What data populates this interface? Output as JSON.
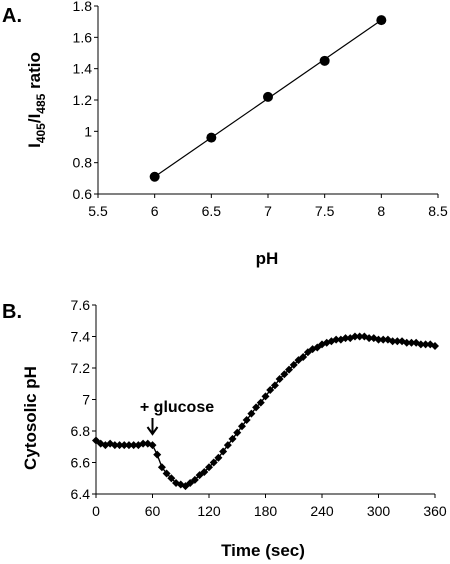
{
  "chart_data": [
    {
      "type": "scatter",
      "panel_label": "A.",
      "xlabel": "pH",
      "ylabel_main": "I",
      "ylabel_sub1": "405",
      "ylabel_mid": "/I",
      "ylabel_sub2": "485",
      "ylabel_end": " ratio",
      "xlim": [
        5.5,
        8.5
      ],
      "ylim": [
        0.6,
        1.8
      ],
      "xticks": [
        "5.5",
        "6",
        "6.5",
        "7",
        "7.5",
        "8",
        "8.5"
      ],
      "yticks": [
        "0.6",
        "0.8",
        "1",
        "1.2",
        "1.4",
        "1.6",
        "1.8"
      ],
      "grid": false,
      "trendline": "linear",
      "series": [
        {
          "x": [
            6,
            6.5,
            7,
            7.5,
            8
          ],
          "y": [
            0.71,
            0.96,
            1.22,
            1.45,
            1.71
          ]
        }
      ]
    },
    {
      "type": "line",
      "panel_label": "B.",
      "xlabel": "Time (sec)",
      "ylabel": "Cytosolic pH",
      "xlim": [
        0,
        360
      ],
      "ylim": [
        6.4,
        7.6
      ],
      "xticks": [
        "0",
        "60",
        "120",
        "180",
        "240",
        "300",
        "360"
      ],
      "yticks": [
        "6.4",
        "6.6",
        "6.8",
        "7",
        "7.2",
        "7.4",
        "7.6"
      ],
      "grid": false,
      "annotation": {
        "text": "+ glucose",
        "x": 60
      },
      "series": [
        {
          "x": [
            0,
            5,
            10,
            15,
            20,
            25,
            30,
            35,
            40,
            45,
            50,
            55,
            60,
            65,
            70,
            75,
            80,
            85,
            90,
            95,
            100,
            105,
            110,
            115,
            120,
            125,
            130,
            135,
            140,
            145,
            150,
            155,
            160,
            165,
            170,
            175,
            180,
            185,
            190,
            195,
            200,
            205,
            210,
            215,
            220,
            225,
            230,
            235,
            240,
            245,
            250,
            255,
            260,
            265,
            270,
            275,
            280,
            285,
            290,
            295,
            300,
            305,
            310,
            315,
            320,
            325,
            330,
            335,
            340,
            345,
            350,
            355,
            360
          ],
          "y": [
            6.74,
            6.72,
            6.71,
            6.72,
            6.71,
            6.71,
            6.71,
            6.71,
            6.71,
            6.71,
            6.72,
            6.72,
            6.71,
            6.65,
            6.57,
            6.53,
            6.5,
            6.47,
            6.46,
            6.45,
            6.47,
            6.49,
            6.52,
            6.54,
            6.57,
            6.6,
            6.63,
            6.67,
            6.71,
            6.75,
            6.79,
            6.83,
            6.87,
            6.91,
            6.95,
            6.98,
            7.02,
            7.06,
            7.09,
            7.13,
            7.16,
            7.19,
            7.22,
            7.25,
            7.27,
            7.3,
            7.32,
            7.33,
            7.35,
            7.36,
            7.37,
            7.38,
            7.38,
            7.39,
            7.39,
            7.4,
            7.4,
            7.4,
            7.39,
            7.39,
            7.38,
            7.38,
            7.38,
            7.37,
            7.37,
            7.37,
            7.36,
            7.36,
            7.36,
            7.35,
            7.35,
            7.35,
            7.34
          ]
        }
      ]
    }
  ]
}
